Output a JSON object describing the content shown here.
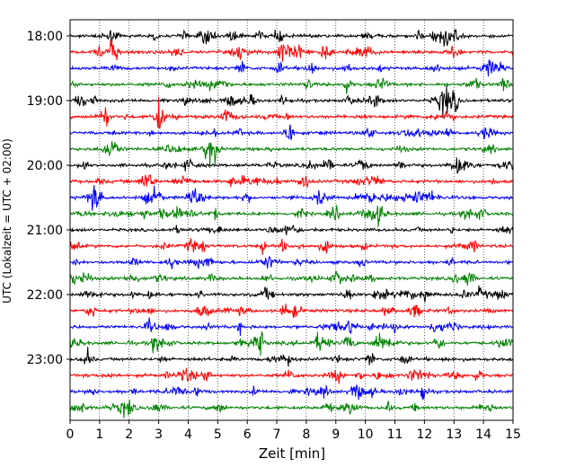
{
  "chart_data": {
    "type": "line",
    "subtype": "helicorder-seismogram",
    "title": "",
    "xlabel": "Zeit  [min]",
    "ylabel": "UTC (Lokalzeit = UTC + 02:00)",
    "xlim": [
      0,
      15
    ],
    "x_ticks": [
      "0",
      "1",
      "2",
      "3",
      "4",
      "5",
      "6",
      "7",
      "8",
      "9",
      "10",
      "11",
      "12",
      "13",
      "14",
      "15"
    ],
    "grid": "vertical dotted at each minute",
    "trace_interval_minutes": 15,
    "traces_start": "18:00",
    "trace_count": 24,
    "y_tick_labels": [
      "18:00",
      "19:00",
      "20:00",
      "21:00",
      "22:00",
      "23:00"
    ],
    "trace_colors": [
      "#000000",
      "#ff0000",
      "#0000ff",
      "#008000"
    ]
  }
}
